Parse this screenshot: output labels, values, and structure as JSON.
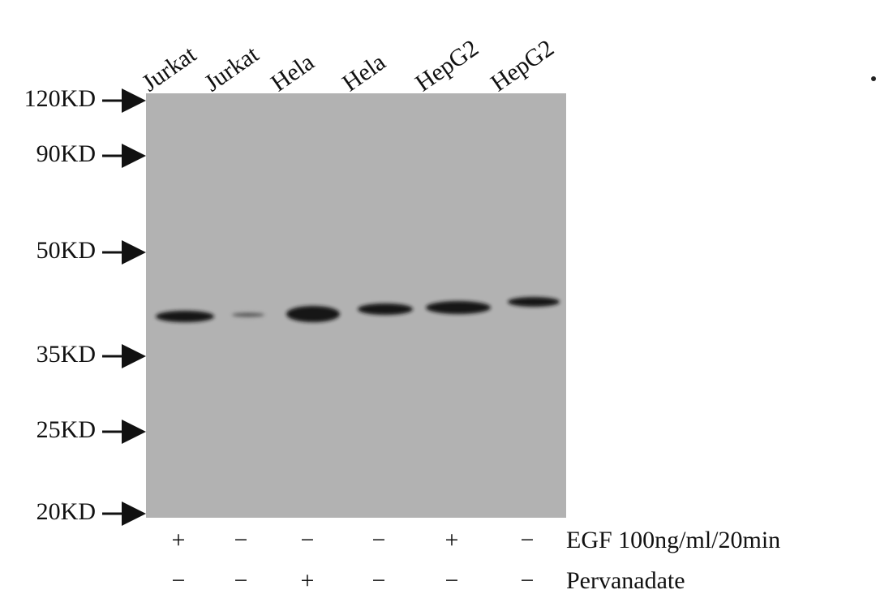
{
  "lanes": [
    "Jurkat",
    "Jurkat",
    "Hela",
    "Hela",
    "HepG2",
    "HepG2"
  ],
  "markers": [
    "120KD",
    "90KD",
    "50KD",
    "35KD",
    "25KD",
    "20KD"
  ],
  "treatments": [
    {
      "label": "EGF 100ng/ml/20min",
      "signs": [
        "+",
        "−",
        "−",
        "−",
        "+",
        "−"
      ]
    },
    {
      "label": "Pervanadate",
      "signs": [
        "−",
        "−",
        "+",
        "−",
        "−",
        "−"
      ]
    }
  ]
}
